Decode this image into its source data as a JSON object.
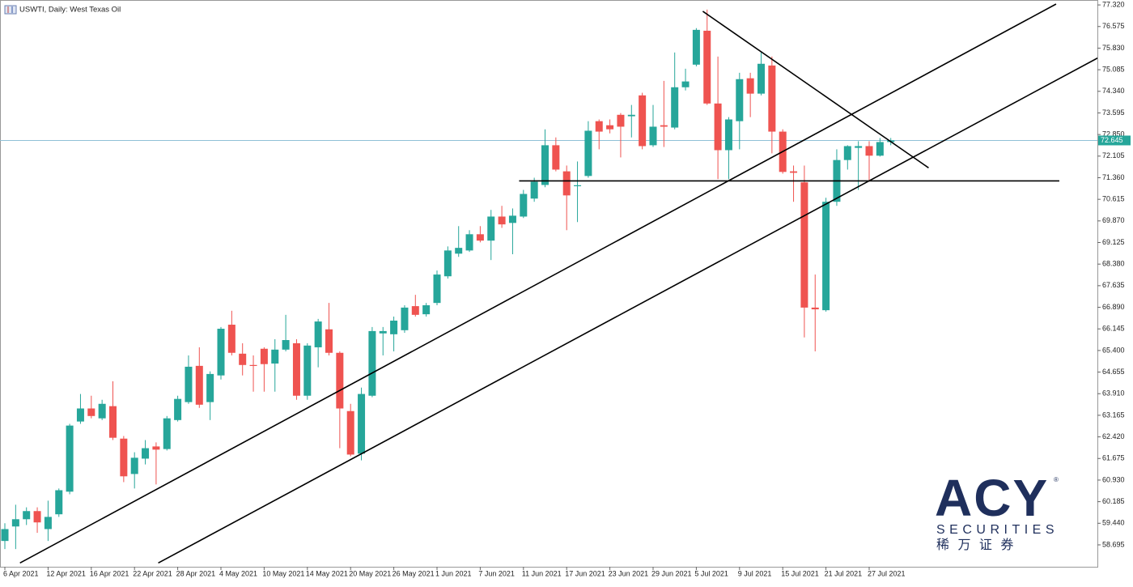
{
  "chart_data": {
    "type": "candlestick",
    "title": "USWTI, Daily: West Texas Oil",
    "categories": [
      "6 Apr 2021",
      null,
      null,
      null,
      "12 Apr 2021",
      null,
      null,
      null,
      "16 Apr 2021",
      null,
      null,
      null,
      "22 Apr 2021",
      null,
      null,
      null,
      "28 Apr 2021",
      null,
      null,
      null,
      "4 May 2021",
      null,
      null,
      null,
      "10 May 2021",
      null,
      null,
      null,
      "14 May 2021",
      null,
      null,
      null,
      "20 May 2021",
      null,
      null,
      null,
      "26 May 2021",
      null,
      null,
      null,
      "1 Jun 2021",
      null,
      null,
      null,
      "7 Jun 2021",
      null,
      null,
      null,
      "11 Jun 2021",
      null,
      null,
      null,
      "17 Jun 2021",
      null,
      null,
      null,
      "23 Jun 2021",
      null,
      null,
      null,
      "29 Jun 2021",
      null,
      null,
      null,
      "5 Jul 2021",
      null,
      null,
      null,
      "9 Jul 2021",
      null,
      null,
      null,
      "15 Jul 2021",
      null,
      null,
      null,
      "21 Jul 2021",
      null,
      null,
      null,
      "27 Jul 2021",
      null,
      null
    ],
    "open": [
      58.83,
      59.33,
      59.58,
      59.86,
      59.24,
      59.75,
      60.53,
      62.95,
      63.4,
      63.06,
      63.48,
      62.36,
      61.14,
      61.67,
      62.09,
      62.0,
      63.0,
      63.62,
      64.87,
      63.62,
      64.54,
      66.29,
      65.29,
      64.9,
      65.46,
      64.95,
      65.43,
      65.65,
      63.84,
      65.51,
      66.13,
      65.32,
      63.31,
      61.84,
      63.84,
      65.99,
      65.96,
      66.1,
      66.93,
      66.65,
      67.04,
      67.96,
      68.74,
      68.85,
      69.41,
      69.19,
      70.02,
      69.8,
      70.02,
      70.64,
      71.11,
      72.48,
      71.58,
      71.08,
      71.42,
      73.31,
      73.17,
      73.53,
      73.48,
      74.2,
      72.48,
      73.17,
      73.09,
      74.48,
      75.26,
      76.43,
      73.92,
      72.31,
      73.31,
      74.79,
      74.26,
      75.23,
      72.95,
      71.58,
      71.2,
      66.88,
      66.79,
      70.53,
      71.97,
      72.39,
      72.45,
      72.12,
      72.59
    ],
    "high": [
      59.44,
      60.08,
      59.99,
      59.99,
      60.22,
      60.64,
      62.87,
      63.9,
      63.84,
      63.7,
      64.34,
      62.45,
      61.89,
      62.31,
      62.23,
      63.14,
      63.84,
      65.23,
      65.51,
      64.68,
      66.21,
      66.77,
      65.65,
      65.23,
      65.51,
      65.79,
      66.63,
      65.79,
      65.65,
      66.49,
      67.04,
      65.37,
      63.56,
      64.12,
      66.21,
      66.21,
      66.57,
      66.96,
      67.32,
      67.04,
      68.16,
      68.99,
      69.69,
      69.55,
      69.69,
      70.25,
      70.39,
      70.3,
      70.94,
      71.36,
      73.03,
      72.75,
      71.78,
      71.92,
      73.31,
      73.37,
      73.37,
      73.59,
      73.87,
      74.29,
      73.87,
      74.7,
      75.68,
      75.12,
      76.52,
      77.16,
      75.54,
      73.45,
      74.98,
      74.98,
      75.68,
      75.54,
      73.03,
      71.78,
      71.78,
      68.02,
      70.67,
      72.34,
      72.48,
      72.62,
      72.62,
      72.73,
      72.73
    ],
    "low": [
      58.55,
      58.55,
      59.38,
      59.11,
      58.83,
      59.66,
      60.44,
      62.87,
      63.06,
      63.0,
      62.31,
      60.86,
      60.64,
      61.47,
      60.78,
      61.95,
      62.95,
      63.56,
      63.42,
      63.0,
      64.4,
      65.23,
      64.54,
      63.98,
      63.98,
      63.98,
      65.37,
      63.7,
      63.7,
      64.82,
      65.23,
      62.03,
      61.75,
      61.61,
      63.79,
      65.23,
      65.37,
      66.01,
      66.57,
      66.57,
      66.96,
      67.88,
      68.63,
      68.8,
      69.13,
      68.52,
      69.63,
      68.72,
      69.97,
      70.53,
      71.03,
      71.58,
      69.55,
      69.83,
      71.36,
      72.34,
      72.89,
      72.06,
      72.75,
      72.34,
      72.42,
      72.42,
      73.03,
      74.37,
      75.2,
      73.87,
      71.31,
      71.31,
      72.34,
      73.45,
      74.2,
      72.2,
      71.5,
      70.53,
      65.85,
      65.37,
      66.74,
      70.39,
      71.64,
      70.94,
      71.22,
      72.09,
      72.48
    ],
    "close": [
      59.24,
      59.58,
      59.86,
      59.47,
      59.66,
      60.58,
      62.81,
      63.4,
      63.14,
      63.56,
      62.39,
      61.06,
      61.7,
      62.03,
      61.98,
      63.06,
      63.73,
      64.84,
      63.53,
      64.59,
      66.15,
      65.32,
      64.9,
      64.88,
      64.93,
      65.43,
      65.76,
      63.84,
      65.57,
      66.4,
      65.32,
      63.4,
      61.81,
      63.9,
      66.07,
      66.07,
      66.43,
      66.88,
      66.63,
      66.96,
      68.02,
      68.85,
      68.94,
      69.41,
      69.19,
      70.02,
      69.75,
      70.05,
      70.8,
      71.22,
      72.48,
      71.64,
      70.75,
      71.1,
      72.98,
      72.95,
      73.03,
      73.12,
      73.53,
      72.45,
      73.12,
      73.12,
      74.48,
      74.68,
      76.46,
      73.92,
      72.31,
      73.37,
      74.76,
      74.26,
      75.29,
      72.95,
      71.56,
      71.53,
      66.88,
      66.82,
      70.53,
      71.97,
      72.45,
      72.45,
      72.12,
      72.59,
      72.645
    ],
    "up_color": "#26a69a",
    "down_color": "#ef5350",
    "ylim": [
      57.94,
      77.49
    ],
    "yticks": [
      58.695,
      {
        "value": 59.44,
        "label": "59.440"
      },
      60.185,
      {
        "value": 60.93,
        "label": "60.930"
      },
      61.675,
      {
        "value": 62.42,
        "label": "62.420"
      },
      63.165,
      {
        "value": 63.91,
        "label": "63.910"
      },
      64.655,
      {
        "value": 65.4,
        "label": "65.400"
      },
      66.145,
      {
        "value": 66.89,
        "label": "66.890"
      },
      67.635,
      {
        "value": 68.38,
        "label": "68.380"
      },
      69.125,
      {
        "value": 69.87,
        "label": "69.870"
      },
      70.615,
      {
        "value": 71.36,
        "label": "71.360"
      },
      72.105,
      {
        "value": 72.85,
        "label": "72.850"
      },
      73.595,
      {
        "value": 74.34,
        "label": "74.340"
      },
      75.085,
      {
        "value": 75.83,
        "label": "75.830"
      },
      76.575,
      {
        "value": 77.32,
        "label": "77.320"
      }
    ],
    "current_price": 72.645,
    "trendlines": [
      {
        "points": [
          [
            1.4,
            58.07
          ],
          [
            97.3,
            77.35
          ]
        ]
      },
      {
        "points": [
          [
            14.2,
            58.07
          ],
          [
            101.4,
            75.54
          ]
        ]
      },
      {
        "points": [
          [
            47.6,
            71.25
          ],
          [
            97.6,
            71.25
          ]
        ]
      },
      {
        "points": [
          [
            64.6,
            77.1
          ],
          [
            85.5,
            71.7
          ]
        ]
      }
    ]
  },
  "watermark": {
    "brand": "ACY",
    "registered": "®",
    "line1": "SECURITIES",
    "line2": "稀 万 证 券"
  }
}
